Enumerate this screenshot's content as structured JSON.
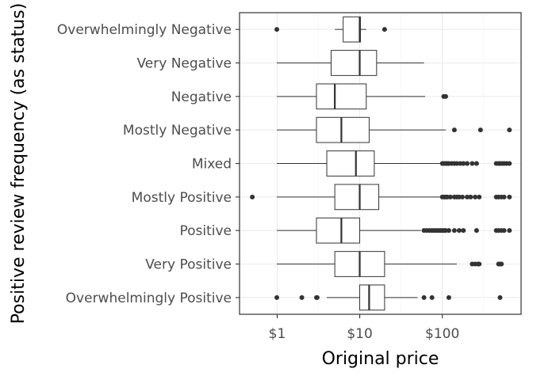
{
  "chart_data": {
    "type": "boxplot",
    "orientation": "horizontal",
    "xlabel": "Original price",
    "ylabel": "Positive review frequency (as status)",
    "x_scale": "log10",
    "x_ticks": [
      {
        "value": 1,
        "label": "$1"
      },
      {
        "value": 10,
        "label": "$10"
      },
      {
        "value": 100,
        "label": "$100"
      }
    ],
    "xlim": [
      0.35,
      900
    ],
    "grid": true,
    "colors": {
      "box_stroke": "#333333",
      "box_fill": "#ffffff",
      "grid": "#ebebeb",
      "panel_border": "#333333",
      "outlier": "#333333"
    },
    "categories": [
      {
        "label": "Overwhelmingly Negative",
        "whisker_low": 5,
        "q1": 6.3,
        "median": 9.99,
        "q3": 10.2,
        "whisker_high": 12,
        "outliers": [
          0.99,
          19.99
        ]
      },
      {
        "label": "Very Negative",
        "whisker_low": 0.99,
        "q1": 4.5,
        "median": 9.99,
        "q3": 16,
        "whisker_high": 60,
        "outliers": []
      },
      {
        "label": "Negative",
        "whisker_low": 0.99,
        "q1": 2.99,
        "median": 4.99,
        "q3": 11.99,
        "whisker_high": 62,
        "outliers": [
          104,
          110
        ]
      },
      {
        "label": "Mostly Negative",
        "whisker_low": 0.99,
        "q1": 2.99,
        "median": 5.99,
        "q3": 13,
        "whisker_high": 110,
        "outliers": [
          140,
          290,
          650
        ]
      },
      {
        "label": "Mixed",
        "whisker_low": 0.99,
        "q1": 3.99,
        "median": 8.99,
        "q3": 14.99,
        "whisker_high": 95,
        "outliers": [
          100,
          105,
          110,
          115,
          120,
          130,
          140,
          150,
          165,
          180,
          200,
          230,
          260,
          450,
          480,
          500,
          530,
          560,
          600,
          650
        ]
      },
      {
        "label": "Mostly Positive",
        "whisker_low": 0.99,
        "q1": 4.99,
        "median": 9.99,
        "q3": 17,
        "whisker_high": 95,
        "outliers": [
          0.5,
          100,
          105,
          110,
          115,
          125,
          140,
          150,
          160,
          175,
          200,
          220,
          250,
          280,
          450,
          480,
          520,
          560,
          650
        ]
      },
      {
        "label": "Positive",
        "whisker_low": 0.99,
        "q1": 2.99,
        "median": 5.99,
        "q3": 9.99,
        "whisker_high": 55,
        "outliers": [
          60,
          65,
          70,
          75,
          80,
          85,
          90,
          95,
          100,
          105,
          110,
          120,
          140,
          160,
          180,
          260,
          450,
          480,
          520,
          560,
          650
        ]
      },
      {
        "label": "Very Positive",
        "whisker_low": 0.99,
        "q1": 4.99,
        "median": 9.99,
        "q3": 19.99,
        "whisker_high": 150,
        "outliers": [
          230,
          250,
          270,
          280,
          480,
          500,
          520
        ]
      },
      {
        "label": "Overwhelmingly Positive",
        "whisker_low": 3.99,
        "q1": 9.99,
        "median": 12.99,
        "q3": 19.99,
        "whisker_high": 50,
        "outliers": [
          0.99,
          1.99,
          2.99,
          3.05,
          60,
          75,
          120,
          500
        ]
      }
    ]
  }
}
